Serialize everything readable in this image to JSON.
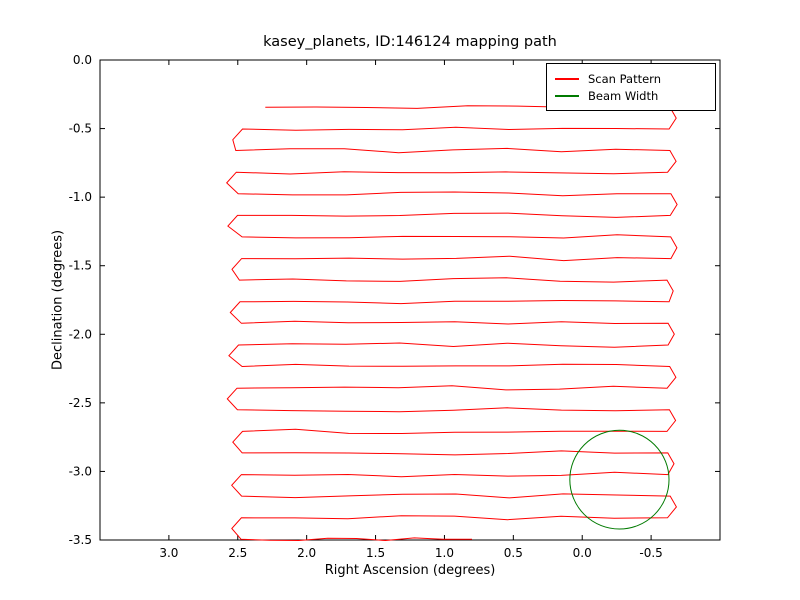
{
  "chart_data": {
    "type": "line",
    "title": "kasey_planets, ID:146124 mapping path",
    "xlabel": "Right Ascension (degrees)",
    "ylabel": "Declination (degrees)",
    "xlim": [
      3.5,
      -1.0
    ],
    "ylim": [
      0.0,
      -3.5
    ],
    "x_axis_inverted": true,
    "grid": false,
    "x_tick_labels": [
      "3.0",
      "2.5",
      "2.0",
      "1.5",
      "1.0",
      "0.5",
      "0.0",
      "-0.5"
    ],
    "y_tick_labels": [
      "0.0",
      "-0.5",
      "-1.0",
      "-1.5",
      "-2.0",
      "-2.5",
      "-3.0",
      "-3.5"
    ],
    "legend": {
      "position": "upper right",
      "entries": [
        {
          "label": "Scan Pattern",
          "color": "#ff0000"
        },
        {
          "label": "Beam Width",
          "color": "#007a00"
        }
      ]
    },
    "series": [
      {
        "name": "Scan Pattern",
        "type": "raster_scan_path",
        "color": "#ff0000",
        "ra_left": 2.49,
        "ra_right": -0.63,
        "first_line_ra_start": 2.3,
        "last_line_ra_end": 0.8,
        "line_decs": [
          -0.345,
          -0.503,
          -0.66,
          -0.818,
          -0.975,
          -1.133,
          -1.29,
          -1.448,
          -1.605,
          -1.763,
          -1.92,
          -2.078,
          -2.235,
          -2.393,
          -2.55,
          -2.708,
          -2.865,
          -3.023,
          -3.18,
          -3.338,
          -3.495
        ]
      },
      {
        "name": "Beam Width",
        "type": "circle",
        "color": "#007a00",
        "center_ra": -0.27,
        "center_dec": -3.06,
        "radius_deg": 0.36
      }
    ]
  }
}
